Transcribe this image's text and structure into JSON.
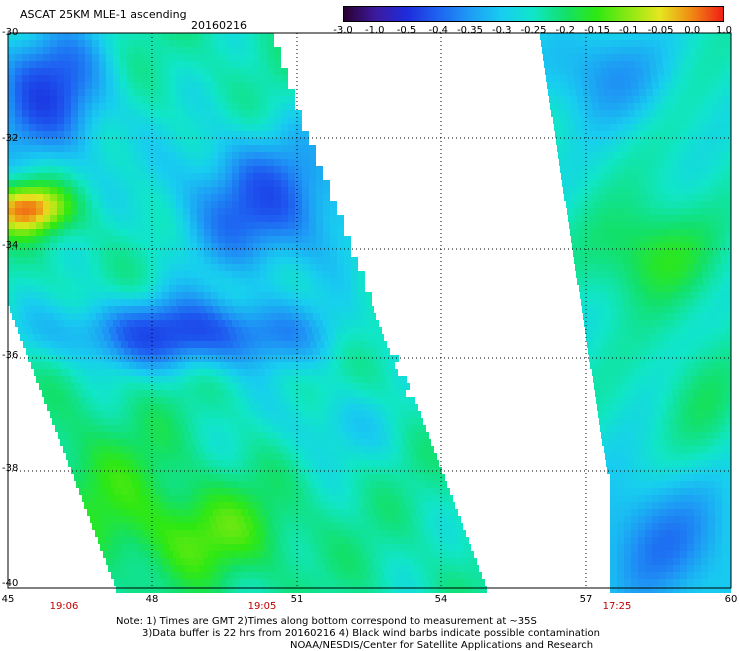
{
  "header": {
    "title": "ASCAT 25KM MLE-1 ascending",
    "date": "20160216"
  },
  "colorbar": {
    "ticks": [
      "-3.0",
      "-1.0",
      "-0.5",
      "-0.4",
      "-0.35",
      "-0.3",
      "-0.25",
      "-0.2",
      "-0.15",
      "-0.1",
      "-0.05",
      "0.0",
      "1.0"
    ],
    "colors": [
      "#2a0030",
      "#3c1a9e",
      "#1e2cdc",
      "#1e64f0",
      "#1e9cf5",
      "#18cdf0",
      "#10e6c8",
      "#12e06a",
      "#2ee812",
      "#8ae812",
      "#e6e61e",
      "#f08a14",
      "#f01e14"
    ]
  },
  "axes": {
    "y_labels": [
      "-30",
      "-32",
      "-34",
      "-36",
      "-38",
      "-40"
    ],
    "x_labels": [
      "45",
      "48",
      "51",
      "54",
      "57",
      "60"
    ],
    "times": [
      "19:06",
      "19:05",
      "17:25"
    ]
  },
  "notes": {
    "line1": "Note: 1) Times are GMT 2)Times along bottom correspond to measurement at ~35S",
    "line2": "3)Data buffer is 22 hrs from 20160216 4) Black wind barbs indicate possible contamination",
    "line3": "NOAA/NESDIS/Center for Satellite Applications and Research"
  }
}
